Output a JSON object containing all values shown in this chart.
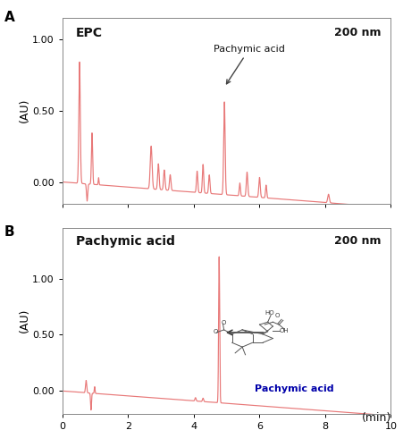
{
  "line_color": "#E87878",
  "background_color": "#ffffff",
  "xlim": [
    0,
    10
  ],
  "ylim_a": [
    -0.15,
    1.15
  ],
  "ylim_b": [
    -0.2,
    1.45
  ],
  "yticks_a": [
    0.0,
    0.5,
    1.0
  ],
  "yticks_b": [
    0.0,
    0.5,
    1.0
  ],
  "xticks": [
    0,
    2,
    4,
    6,
    8,
    10
  ],
  "panel_a_label": "EPC",
  "panel_b_label": "Pachymic acid",
  "nm_label": "200 nm",
  "ylabel": "(AU)",
  "xlabel_text": "10",
  "annotation_a_text": "Pachymic acid",
  "annotation_b_text": "Pachymic acid",
  "panel_a_letter": "A",
  "panel_b_letter": "B",
  "structure_label": "Pachymic acid",
  "arrow_color": "#333333"
}
